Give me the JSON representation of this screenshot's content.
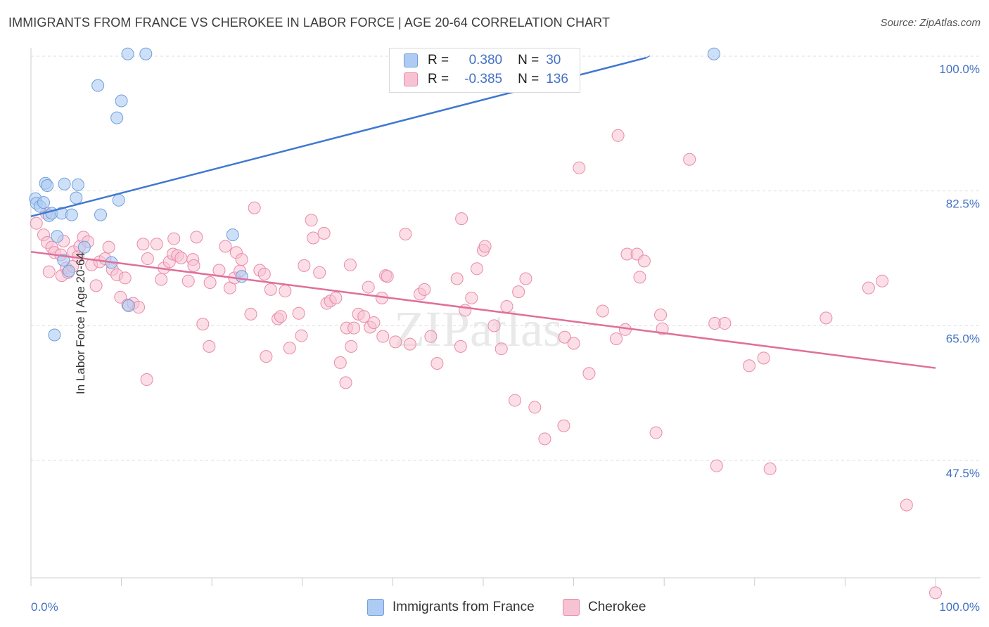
{
  "title": "IMMIGRANTS FROM FRANCE VS CHEROKEE IN LABOR FORCE | AGE 20-64 CORRELATION CHART",
  "source": "Source: ZipAtlas.com",
  "watermark": "ZIPatlas",
  "legend": {
    "rows": [
      {
        "r_label": "R =",
        "r_value": "0.380",
        "n_label": "N =",
        "n_value": "30"
      },
      {
        "r_label": "R =",
        "r_value": "-0.385",
        "n_label": "N =",
        "n_value": "136"
      }
    ]
  },
  "bottom_legend": [
    "Immigrants from France",
    "Cherokee"
  ],
  "colors": {
    "blue_fill": "#aecbf3",
    "blue_stroke": "#6f9fdc",
    "blue_line": "#3f78d0",
    "pink_fill": "#f7c3d2",
    "pink_stroke": "#e98aab",
    "pink_line": "#e06f9a",
    "axis_label": "#4472c4",
    "grid": "#dddddd"
  },
  "chart_data": {
    "type": "scatter",
    "title": "IMMIGRANTS FROM FRANCE VS CHEROKEE IN LABOR FORCE | AGE 20-64 CORRELATION CHART",
    "xlabel": "",
    "ylabel": "In Labor Force | Age 20-64",
    "xlim": [
      0,
      100
    ],
    "ylim": [
      29,
      101
    ],
    "x_tick_labels": [
      "0.0%",
      "100.0%"
    ],
    "y_ticks": [
      47.5,
      65.0,
      82.5,
      100.0
    ],
    "y_tick_labels": [
      "47.5%",
      "65.0%",
      "82.5%",
      "100.0%"
    ],
    "grid": true,
    "legend_position": "top-center",
    "series": [
      {
        "name": "Immigrants from France",
        "R": 0.38,
        "N": 30,
        "trend": {
          "x": [
            0,
            68
          ],
          "y": [
            79.2,
            99.8
          ],
          "dashed_to": {
            "x": 68.5,
            "y": 100.1
          }
        },
        "points": [
          [
            0.5,
            81.5
          ],
          [
            0.6,
            80.9
          ],
          [
            1.0,
            80.5
          ],
          [
            1.4,
            81.0
          ],
          [
            1.6,
            83.5
          ],
          [
            1.8,
            83.2
          ],
          [
            2.0,
            79.3
          ],
          [
            2.3,
            79.6
          ],
          [
            2.6,
            63.8
          ],
          [
            2.9,
            76.6
          ],
          [
            3.4,
            79.6
          ],
          [
            3.6,
            73.5
          ],
          [
            3.7,
            83.4
          ],
          [
            4.2,
            72.1
          ],
          [
            4.5,
            79.4
          ],
          [
            5.0,
            81.6
          ],
          [
            5.2,
            83.3
          ],
          [
            5.9,
            75.2
          ],
          [
            7.4,
            96.2
          ],
          [
            7.7,
            79.4
          ],
          [
            8.9,
            73.2
          ],
          [
            9.5,
            92.0
          ],
          [
            9.7,
            81.3
          ],
          [
            10.0,
            94.2
          ],
          [
            10.7,
            100.3
          ],
          [
            10.8,
            67.6
          ],
          [
            12.7,
            100.3
          ],
          [
            22.3,
            76.8
          ],
          [
            23.3,
            71.4
          ],
          [
            75.5,
            100.3
          ]
        ]
      },
      {
        "name": "Cherokee",
        "R": -0.385,
        "N": 136,
        "trend": {
          "x": [
            0,
            100
          ],
          "y": [
            74.6,
            59.5
          ]
        },
        "points": [
          [
            0.6,
            78.3
          ],
          [
            1.4,
            76.8
          ],
          [
            1.7,
            79.6
          ],
          [
            1.8,
            75.8
          ],
          [
            2.0,
            72.0
          ],
          [
            2.3,
            75.2
          ],
          [
            2.6,
            74.5
          ],
          [
            3.3,
            74.2
          ],
          [
            3.4,
            71.5
          ],
          [
            3.6,
            76.0
          ],
          [
            3.9,
            72.5
          ],
          [
            4.1,
            71.9
          ],
          [
            4.6,
            72.7
          ],
          [
            4.7,
            74.6
          ],
          [
            5.2,
            74.0
          ],
          [
            5.4,
            75.3
          ],
          [
            5.8,
            76.5
          ],
          [
            6.3,
            75.9
          ],
          [
            6.7,
            72.9
          ],
          [
            7.2,
            70.2
          ],
          [
            7.6,
            73.3
          ],
          [
            8.2,
            73.7
          ],
          [
            8.6,
            75.2
          ],
          [
            9.0,
            72.3
          ],
          [
            9.5,
            71.6
          ],
          [
            9.9,
            68.7
          ],
          [
            10.4,
            71.2
          ],
          [
            10.7,
            67.7
          ],
          [
            11.3,
            67.9
          ],
          [
            11.9,
            67.4
          ],
          [
            12.4,
            75.6
          ],
          [
            12.8,
            58.0
          ],
          [
            12.9,
            73.7
          ],
          [
            13.9,
            75.6
          ],
          [
            14.4,
            71.0
          ],
          [
            14.7,
            72.5
          ],
          [
            15.3,
            73.3
          ],
          [
            15.7,
            74.3
          ],
          [
            15.8,
            76.3
          ],
          [
            16.2,
            74.1
          ],
          [
            16.6,
            73.8
          ],
          [
            17.4,
            70.8
          ],
          [
            17.9,
            73.6
          ],
          [
            18.0,
            72.8
          ],
          [
            18.3,
            76.5
          ],
          [
            19.0,
            65.2
          ],
          [
            19.7,
            62.3
          ],
          [
            19.8,
            70.6
          ],
          [
            20.8,
            72.2
          ],
          [
            21.5,
            75.3
          ],
          [
            22.0,
            69.9
          ],
          [
            22.5,
            71.2
          ],
          [
            22.7,
            74.5
          ],
          [
            23.1,
            72.1
          ],
          [
            23.3,
            73.6
          ],
          [
            24.3,
            66.5
          ],
          [
            24.7,
            80.3
          ],
          [
            25.3,
            72.2
          ],
          [
            25.8,
            71.7
          ],
          [
            26.0,
            61.0
          ],
          [
            26.5,
            69.7
          ],
          [
            27.3,
            65.9
          ],
          [
            27.6,
            66.2
          ],
          [
            28.1,
            69.5
          ],
          [
            28.6,
            62.1
          ],
          [
            29.6,
            66.6
          ],
          [
            29.9,
            63.7
          ],
          [
            30.2,
            72.8
          ],
          [
            31.0,
            78.7
          ],
          [
            31.2,
            76.4
          ],
          [
            31.9,
            71.9
          ],
          [
            32.4,
            77.0
          ],
          [
            32.7,
            67.9
          ],
          [
            33.1,
            68.2
          ],
          [
            33.7,
            68.6
          ],
          [
            34.2,
            60.2
          ],
          [
            34.8,
            57.6
          ],
          [
            34.9,
            64.7
          ],
          [
            35.3,
            72.9
          ],
          [
            35.4,
            62.3
          ],
          [
            35.7,
            64.7
          ],
          [
            36.2,
            66.5
          ],
          [
            36.8,
            66.2
          ],
          [
            37.3,
            70.0
          ],
          [
            37.5,
            64.8
          ],
          [
            37.9,
            65.4
          ],
          [
            38.8,
            68.6
          ],
          [
            38.9,
            63.6
          ],
          [
            39.2,
            71.5
          ],
          [
            39.4,
            71.4
          ],
          [
            40.3,
            62.9
          ],
          [
            41.4,
            76.9
          ],
          [
            41.9,
            62.6
          ],
          [
            43.0,
            69.1
          ],
          [
            43.5,
            69.7
          ],
          [
            44.2,
            63.6
          ],
          [
            44.9,
            60.1
          ],
          [
            47.1,
            71.1
          ],
          [
            47.5,
            62.3
          ],
          [
            47.6,
            78.9
          ],
          [
            48.0,
            67.0
          ],
          [
            48.7,
            68.6
          ],
          [
            49.3,
            72.4
          ],
          [
            50.0,
            74.8
          ],
          [
            50.2,
            75.3
          ],
          [
            51.2,
            65.0
          ],
          [
            52.0,
            62.0
          ],
          [
            52.6,
            67.5
          ],
          [
            53.5,
            55.3
          ],
          [
            53.9,
            69.4
          ],
          [
            54.7,
            71.1
          ],
          [
            55.7,
            54.4
          ],
          [
            56.8,
            50.3
          ],
          [
            58.9,
            52.0
          ],
          [
            59.0,
            63.5
          ],
          [
            60.0,
            62.7
          ],
          [
            60.6,
            85.5
          ],
          [
            61.7,
            58.8
          ],
          [
            63.2,
            66.9
          ],
          [
            64.7,
            63.3
          ],
          [
            64.9,
            89.7
          ],
          [
            65.7,
            64.5
          ],
          [
            65.9,
            74.3
          ],
          [
            67.0,
            74.3
          ],
          [
            67.3,
            71.3
          ],
          [
            67.8,
            73.4
          ],
          [
            69.1,
            51.1
          ],
          [
            69.6,
            66.4
          ],
          [
            69.8,
            64.6
          ],
          [
            72.8,
            86.6
          ],
          [
            75.6,
            65.3
          ],
          [
            75.8,
            46.8
          ],
          [
            76.7,
            65.3
          ],
          [
            79.4,
            59.8
          ],
          [
            81.0,
            60.8
          ],
          [
            81.7,
            46.4
          ],
          [
            87.9,
            66.0
          ],
          [
            92.6,
            69.9
          ],
          [
            94.1,
            70.8
          ],
          [
            96.8,
            41.7
          ],
          [
            100.0,
            30.3
          ]
        ]
      }
    ]
  }
}
